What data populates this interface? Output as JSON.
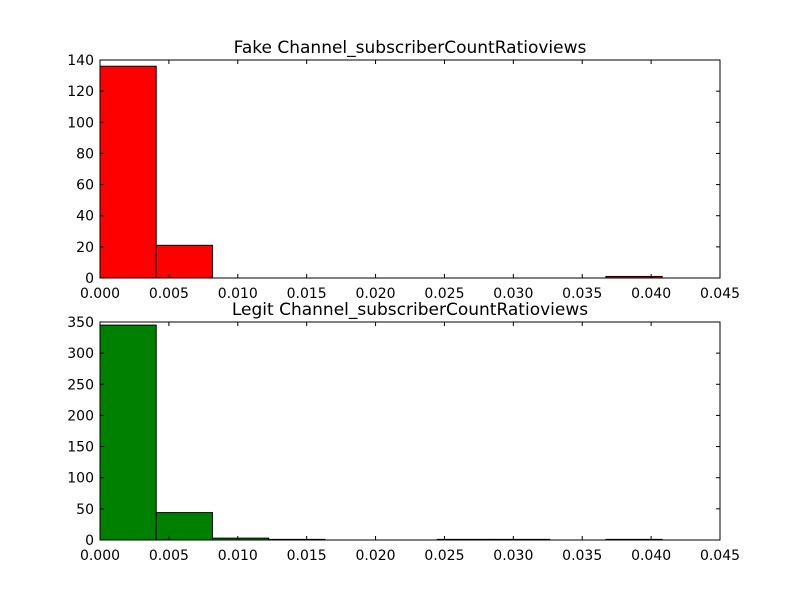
{
  "chart_data": [
    {
      "type": "bar",
      "title": "Fake Channel_subscriberCountRatioviews",
      "xlabel": "",
      "ylabel": "",
      "xlim": [
        0,
        0.045
      ],
      "ylim": [
        0,
        140
      ],
      "xticks": [
        "0.000",
        "0.005",
        "0.010",
        "0.015",
        "0.020",
        "0.025",
        "0.030",
        "0.035",
        "0.040",
        "0.045"
      ],
      "yticks": [
        "0",
        "20",
        "40",
        "60",
        "80",
        "100",
        "120",
        "140"
      ],
      "bar_color": "#ff0000",
      "bins": [
        {
          "x0": 0.0,
          "x1": 0.00408,
          "value": 136
        },
        {
          "x0": 0.00408,
          "x1": 0.00816,
          "value": 21
        },
        {
          "x0": 0.00816,
          "x1": 0.01224,
          "value": 0
        },
        {
          "x0": 0.01224,
          "x1": 0.01632,
          "value": 0
        },
        {
          "x0": 0.01632,
          "x1": 0.0204,
          "value": 0
        },
        {
          "x0": 0.0204,
          "x1": 0.02448,
          "value": 0
        },
        {
          "x0": 0.02448,
          "x1": 0.02856,
          "value": 0
        },
        {
          "x0": 0.02856,
          "x1": 0.03264,
          "value": 0
        },
        {
          "x0": 0.03264,
          "x1": 0.03672,
          "value": 0
        },
        {
          "x0": 0.03672,
          "x1": 0.0408,
          "value": 1
        }
      ]
    },
    {
      "type": "bar",
      "title": "Legit Channel_subscriberCountRatioviews",
      "xlabel": "",
      "ylabel": "",
      "xlim": [
        0,
        0.045
      ],
      "ylim": [
        0,
        350
      ],
      "xticks": [
        "0.000",
        "0.005",
        "0.010",
        "0.015",
        "0.020",
        "0.025",
        "0.030",
        "0.035",
        "0.040",
        "0.045"
      ],
      "yticks": [
        "0",
        "50",
        "100",
        "150",
        "200",
        "250",
        "300",
        "350"
      ],
      "bar_color": "#008000",
      "bins": [
        {
          "x0": 0.0,
          "x1": 0.00408,
          "value": 345
        },
        {
          "x0": 0.00408,
          "x1": 0.00816,
          "value": 44
        },
        {
          "x0": 0.00816,
          "x1": 0.01224,
          "value": 3
        },
        {
          "x0": 0.01224,
          "x1": 0.01632,
          "value": 1
        },
        {
          "x0": 0.01632,
          "x1": 0.0204,
          "value": 0
        },
        {
          "x0": 0.0204,
          "x1": 0.02448,
          "value": 0
        },
        {
          "x0": 0.02448,
          "x1": 0.02856,
          "value": 1
        },
        {
          "x0": 0.02856,
          "x1": 0.03264,
          "value": 1
        },
        {
          "x0": 0.03264,
          "x1": 0.03672,
          "value": 0
        },
        {
          "x0": 0.03672,
          "x1": 0.0408,
          "value": 1
        }
      ]
    }
  ]
}
